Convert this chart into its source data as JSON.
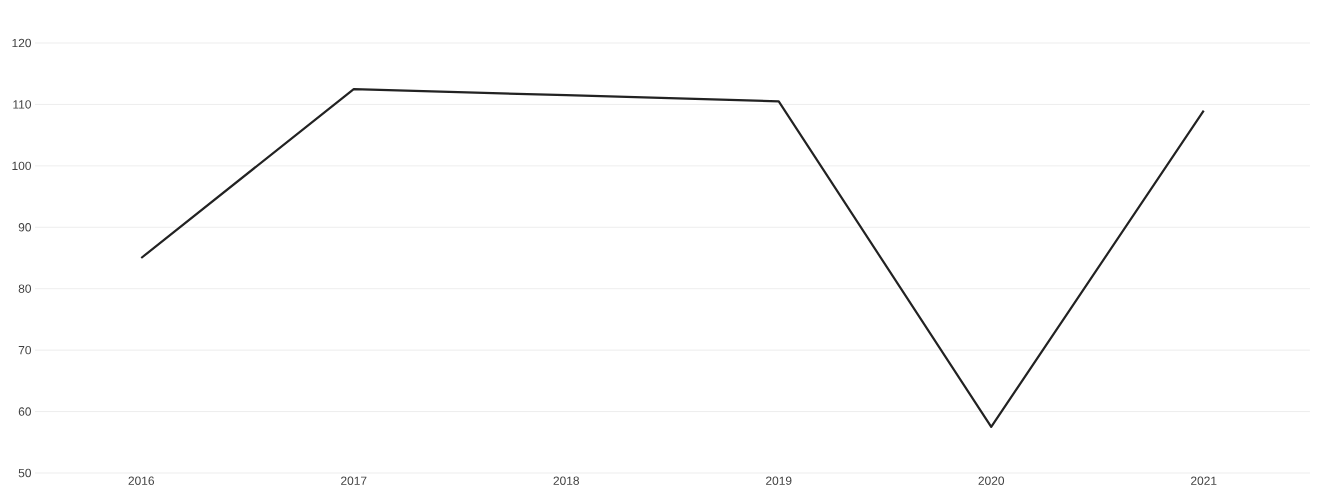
{
  "chart_data": {
    "type": "line",
    "categories": [
      "2016",
      "2017",
      "2018",
      "2019",
      "2020",
      "2021"
    ],
    "series": [
      {
        "color": "#222222",
        "values": [
          85,
          112.5,
          111.5,
          110.5,
          57.5,
          109
        ]
      }
    ],
    "ylim": [
      50,
      120
    ],
    "yticks": [
      50,
      60,
      70,
      80,
      90,
      100,
      110,
      120
    ],
    "grid": "y",
    "marker": "none",
    "line_style": "solid"
  }
}
